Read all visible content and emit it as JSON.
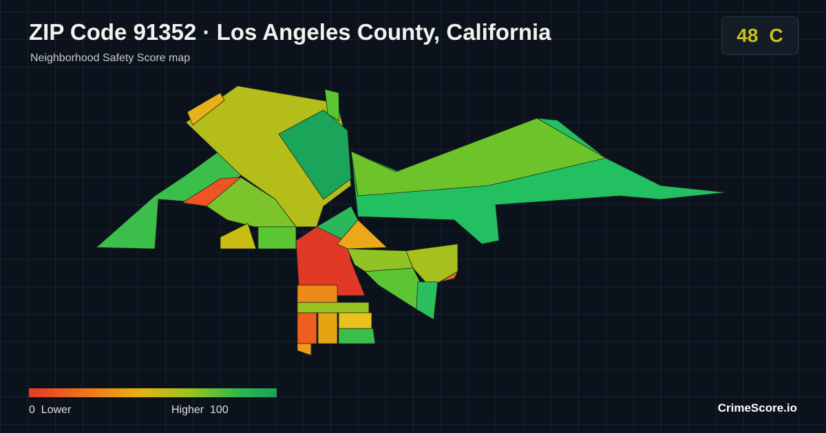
{
  "header": {
    "title": "ZIP Code 91352 · Los Angeles County, California",
    "subtitle": "Neighborhood Safety Score map"
  },
  "score": {
    "value": 48,
    "grade": "C"
  },
  "legend": {
    "min": 0,
    "min_label": "Lower",
    "max_label": "Higher",
    "max": 100
  },
  "brand": "CrimeScore.io"
}
